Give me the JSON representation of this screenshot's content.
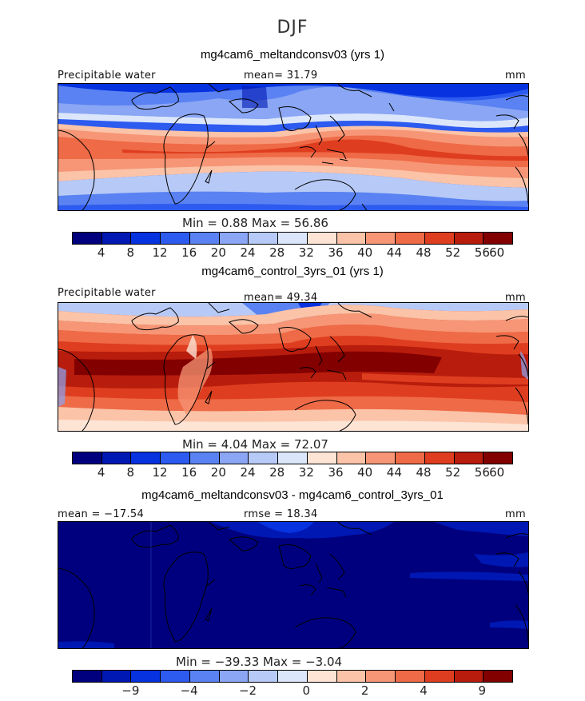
{
  "figure": {
    "season": "DJF",
    "colors": {
      "ocean": "#003a9c",
      "coast": "#000000",
      "scale": [
        "#00007f",
        "#0018b3",
        "#0632e0",
        "#2d5aef",
        "#5a82f2",
        "#8aa6f4",
        "#b7caf7",
        "#dbe6fb",
        "#fde4d5",
        "#fbc3a8",
        "#f69676",
        "#ef6a46",
        "#de3e1f",
        "#b81c0c",
        "#820000"
      ]
    }
  },
  "chart_data": [
    {
      "type": "heatmap",
      "title": "mg4cam6_meltandconsv03 (yrs 1)",
      "field_label": "Precipitable water",
      "units": "mm",
      "mean_text": "mean=  31.79",
      "minmax_text": "Min =    0.88 Max =   56.86",
      "stats": {
        "mean": 31.79,
        "min": 0.88,
        "max": 56.86
      },
      "colorbar_levels": [
        4,
        8,
        12,
        16,
        20,
        24,
        28,
        32,
        36,
        40,
        44,
        48,
        52,
        56,
        60
      ],
      "colorbar_ticks": [
        "4",
        "8",
        "12",
        "16",
        "20",
        "24",
        "28",
        "32",
        "36",
        "40",
        "44",
        "48",
        "52",
        "56",
        "60"
      ]
    },
    {
      "type": "heatmap",
      "title": "mg4cam6_control_3yrs_01 (yrs 1)",
      "field_label": "Precipitable water",
      "units": "mm",
      "mean_text": "mean=  49.34",
      "minmax_text": "Min =    4.04 Max =   72.07",
      "stats": {
        "mean": 49.34,
        "min": 4.04,
        "max": 72.07
      },
      "colorbar_levels": [
        4,
        8,
        12,
        16,
        20,
        24,
        28,
        32,
        36,
        40,
        44,
        48,
        52,
        56,
        60
      ],
      "colorbar_ticks": [
        "4",
        "8",
        "12",
        "16",
        "20",
        "24",
        "28",
        "32",
        "36",
        "40",
        "44",
        "48",
        "52",
        "56",
        "60"
      ]
    },
    {
      "type": "heatmap",
      "title": "mg4cam6_meltandconsv03 - mg4cam6_control_3yrs_01",
      "units": "mm",
      "mean_text": "mean = −17.54",
      "rmse_text": "rmse =   18.34",
      "minmax_text": "Min = −39.33 Max =   −3.04",
      "stats": {
        "mean": -17.54,
        "rmse": 18.34,
        "min": -39.33,
        "max": -3.04
      },
      "colorbar_ticks": [
        "−9",
        "−4",
        "−2",
        "0",
        "2",
        "4",
        "9"
      ]
    }
  ]
}
